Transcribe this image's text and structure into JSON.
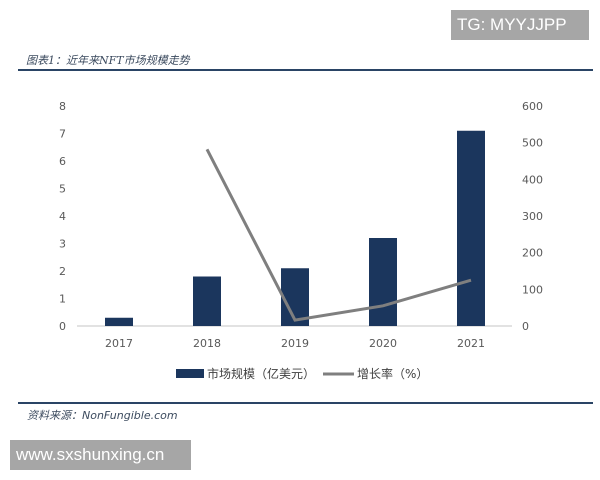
{
  "watermarks": {
    "top_right": "TG: MYYJJPP",
    "bottom_left": "www.sxshunxing.cn"
  },
  "figure": {
    "title": "图表1：近年来NFT市场规模走势",
    "source": "资料来源：NonFungible.com"
  },
  "colors": {
    "bar": "#1b365d",
    "line": "#7f7f7f",
    "rule": "#2a4465",
    "axis": "#d9d9d9"
  },
  "chart_data": {
    "type": "bar",
    "title": "近年来NFT市场规模走势",
    "categories": [
      "2017",
      "2018",
      "2019",
      "2020",
      "2021"
    ],
    "series": [
      {
        "name": "市场规模（亿美元）",
        "type": "bar",
        "axis": "left",
        "values": [
          0.3,
          1.8,
          2.1,
          3.2,
          7.1
        ]
      },
      {
        "name": "增长率（%）",
        "type": "line",
        "axis": "right",
        "values": [
          null,
          482,
          16,
          55,
          125
        ]
      }
    ],
    "xlabel": "",
    "ylabel": "",
    "y_left": {
      "ylim": [
        0,
        8
      ],
      "ticks": [
        "0",
        "1",
        "2",
        "3",
        "4",
        "5",
        "6",
        "7",
        "8"
      ]
    },
    "y_right": {
      "ylim": [
        0,
        600
      ],
      "ticks": [
        "0",
        "100",
        "200",
        "300",
        "400",
        "500",
        "600"
      ]
    },
    "grid": false,
    "legend_position": "bottom",
    "legend": [
      "市场规模（亿美元）",
      "增长率（%）"
    ]
  }
}
